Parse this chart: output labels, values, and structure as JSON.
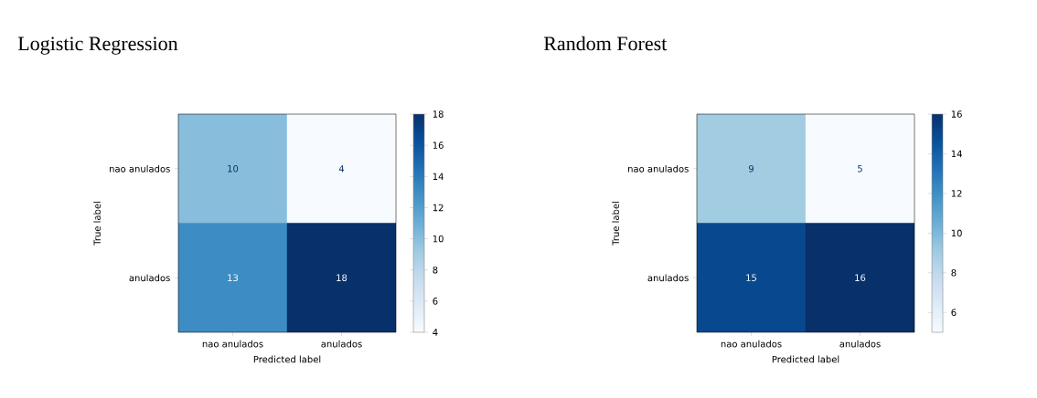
{
  "chart_data": [
    {
      "type": "heatmap",
      "title": "Logistic Regression",
      "xlabel": "Predicted label",
      "ylabel": "True label",
      "categories": [
        "nao anulados",
        "anulados"
      ],
      "y_categories": [
        "nao anulados",
        "anulados"
      ],
      "cells": [
        [
          10,
          4
        ],
        [
          13,
          18
        ]
      ],
      "clim": [
        4,
        18
      ],
      "cticks": [
        4,
        6,
        8,
        10,
        12,
        14,
        16,
        18
      ],
      "data_labels": true
    },
    {
      "type": "heatmap",
      "title": "Random Forest",
      "xlabel": "Predicted label",
      "ylabel": "True label",
      "categories": [
        "nao anulados",
        "anulados"
      ],
      "y_categories": [
        "nao anulados",
        "anulados"
      ],
      "cells": [
        [
          9,
          5
        ],
        [
          15,
          16
        ]
      ],
      "clim": [
        5,
        16
      ],
      "cticks": [
        6,
        8,
        10,
        12,
        14,
        16
      ],
      "data_labels": true
    }
  ]
}
